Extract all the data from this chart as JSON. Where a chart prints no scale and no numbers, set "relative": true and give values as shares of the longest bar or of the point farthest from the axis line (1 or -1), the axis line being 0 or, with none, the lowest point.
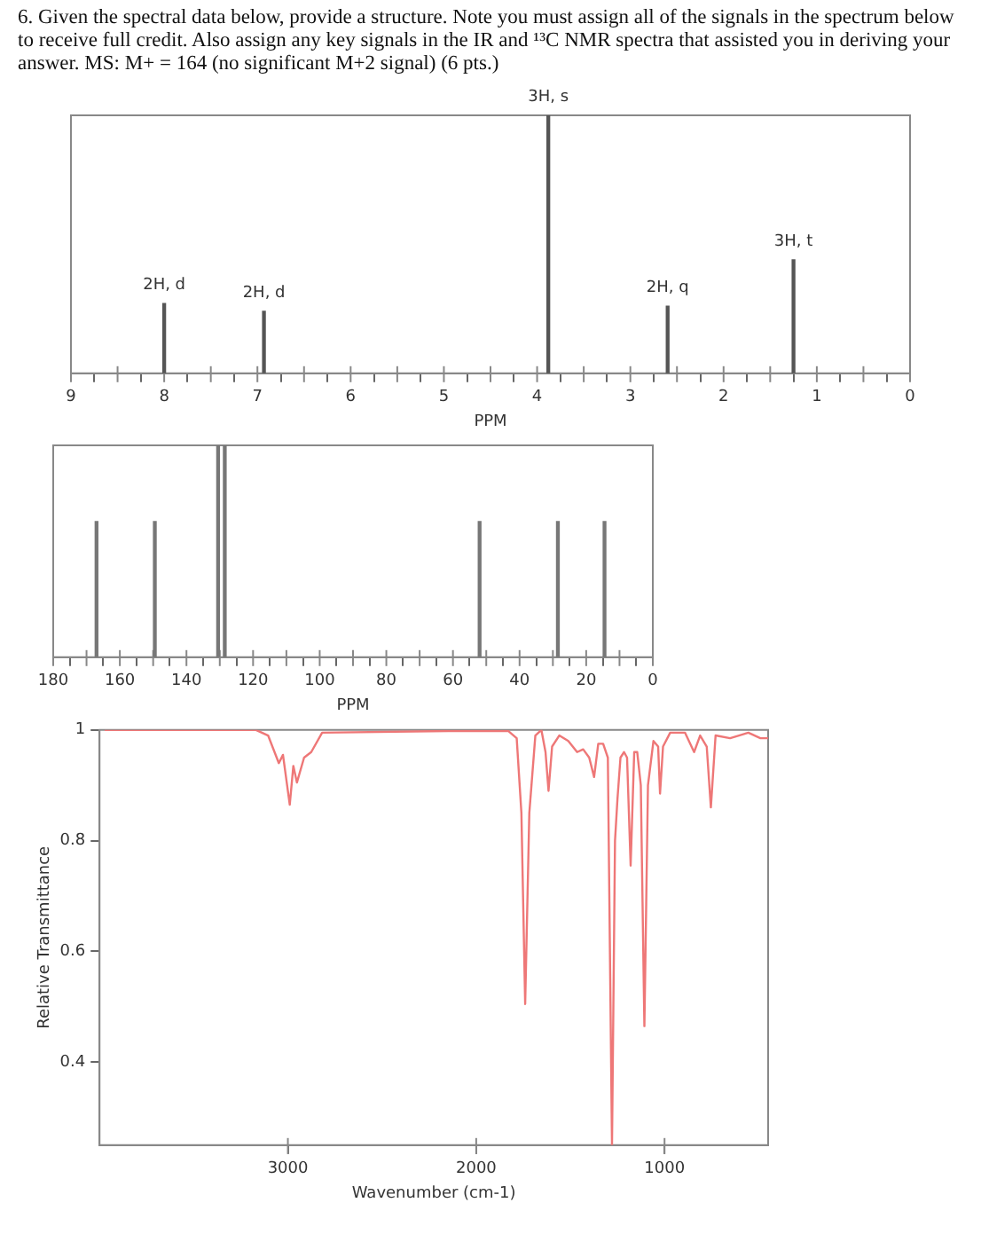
{
  "chart_data": [
    {
      "type": "bar",
      "title": "6. Given the spectral data below, provide a structure.  Note you must assign all of the signals in the spectrum below to receive full credit. Also assign any key signals in the IR and ¹³C NMR spectra that assisted you in deriving your answer. MS: M+ = 164 (no significant M+2 signal) (6 pts.)",
      "relative": true,
      "xlabel": "PPM",
      "x": [
        8.0,
        6.93,
        3.88,
        2.6,
        1.25
      ],
      "values": [
        0.27,
        0.24,
        1,
        0.26,
        0.44
      ],
      "color": "#555555",
      "xlim": [
        9,
        0
      ],
      "xticks": [
        9,
        {
          "value": 8.5,
          "label": null
        },
        8,
        {
          "value": 7.5,
          "label": null
        },
        7,
        {
          "value": 6.5,
          "label": null
        },
        6,
        {
          "value": 5.5,
          "label": null
        },
        5,
        {
          "value": 4.5,
          "label": null
        },
        4,
        {
          "value": 3.5,
          "label": null
        },
        3,
        {
          "value": 2.5,
          "label": null
        },
        2,
        {
          "value": 1.5,
          "label": null
        },
        1,
        {
          "value": 0.5,
          "label": null
        },
        0
      ],
      "annotations": [
        {
          "text": "2H, d",
          "x": 8.0,
          "y": 0.27
        },
        {
          "text": "2H, d",
          "x": 6.93,
          "y": 0.24
        },
        {
          "text": "3H, s",
          "x": 3.88,
          "y": 1
        },
        {
          "text": "2H, q",
          "x": 2.6,
          "y": 0.26
        },
        {
          "text": "3H, t",
          "x": 1.25,
          "y": 0.44
        }
      ]
    },
    {
      "type": "bar",
      "relative": true,
      "xlabel": "PPM",
      "x": [
        167,
        149.5,
        130.5,
        128.5,
        52,
        28.5,
        14.5
      ],
      "values": [
        0.64,
        0.64,
        1,
        1,
        0.64,
        0.64,
        0.64
      ],
      "color": "#777777",
      "xlim": [
        180,
        0
      ],
      "xticks": [
        180,
        {
          "value": 170,
          "label": null
        },
        160,
        {
          "value": 150,
          "label": null
        },
        140,
        {
          "value": 130,
          "label": null
        },
        120,
        {
          "value": 110,
          "label": null
        },
        100,
        {
          "value": 90,
          "label": null
        },
        80,
        {
          "value": 70,
          "label": null
        },
        60,
        {
          "value": 50,
          "label": null
        },
        40,
        {
          "value": 30,
          "label": null
        },
        20,
        {
          "value": 10,
          "label": null
        },
        0
      ]
    },
    {
      "type": "line",
      "xlabel": "Wavenumber (cm-1)",
      "ylabel": "Relative Transmittance",
      "color": "#ee7777",
      "x": [
        3973,
        3169,
        3105,
        3048,
        3026,
        2990,
        2971,
        2952,
        2914,
        2876,
        2818,
        2148,
        1829,
        1785,
        1760,
        1740,
        1718,
        1686,
        1654,
        1632,
        1616,
        1597,
        1559,
        1511,
        1464,
        1432,
        1400,
        1374,
        1352,
        1326,
        1301,
        1279,
        1263,
        1250,
        1234,
        1215,
        1199,
        1180,
        1161,
        1145,
        1126,
        1107,
        1088,
        1059,
        1034,
        1024,
        1008,
        970,
        891,
        843,
        811,
        776,
        754,
        729,
        652,
        605,
        555,
        491,
        450
      ],
      "values": [
        1.0,
        1.0,
        0.99,
        0.94,
        0.955,
        0.865,
        0.935,
        0.905,
        0.95,
        0.96,
        0.995,
        0.998,
        0.998,
        0.985,
        0.85,
        0.505,
        0.85,
        0.99,
        1.0,
        0.96,
        0.89,
        0.97,
        0.99,
        0.98,
        0.96,
        0.965,
        0.95,
        0.915,
        0.975,
        0.975,
        0.95,
        0.25,
        0.8,
        0.875,
        0.95,
        0.96,
        0.95,
        0.755,
        0.96,
        0.96,
        0.9,
        0.465,
        0.9,
        0.98,
        0.97,
        0.885,
        0.97,
        0.995,
        0.995,
        0.96,
        0.99,
        0.97,
        0.86,
        0.99,
        0.985,
        0.99,
        0.995,
        0.985,
        0.985
      ],
      "xlim": [
        4000,
        450
      ],
      "xticks": [
        3000,
        2000,
        1000
      ],
      "ylim": [
        0.25,
        1
      ],
      "yticks": [
        0.4,
        0.6,
        0.8,
        1
      ]
    }
  ]
}
